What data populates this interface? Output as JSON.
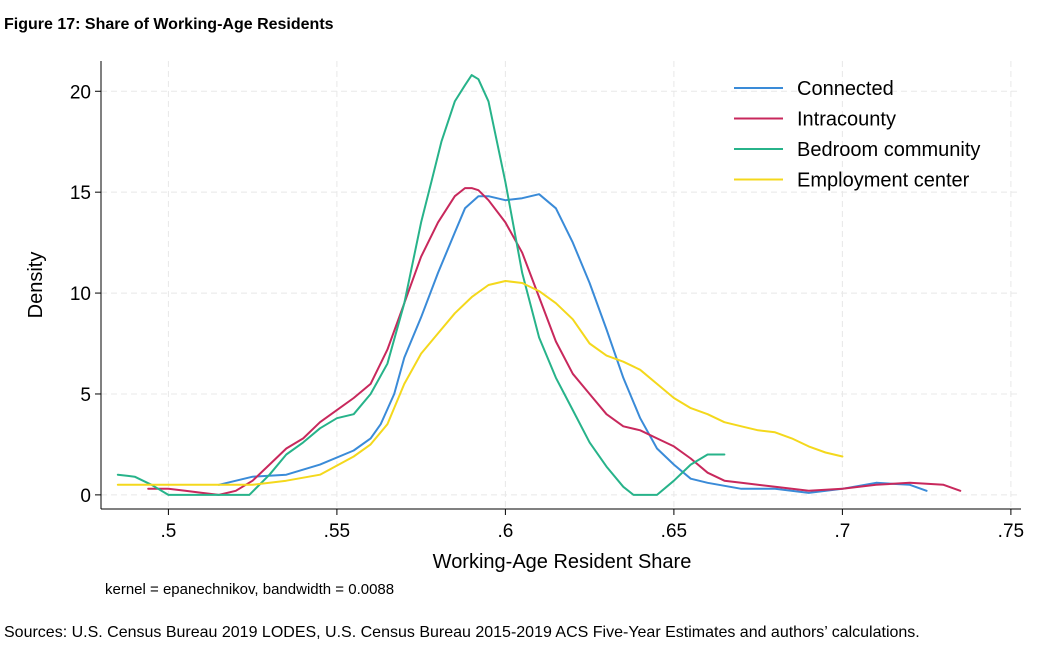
{
  "figure": {
    "title": "Figure 17: Share of Working-Age Residents",
    "sources": "Sources: U.S. Census Bureau 2019 LODES, U.S. Census Bureau 2015-2019 ACS Five-Year Estimates and authors’ calculations."
  },
  "chart_data": {
    "type": "line",
    "title": "Figure 17: Share of Working-Age Residents",
    "xlabel": "Working-Age Resident Share",
    "ylabel": "Density",
    "note": "kernel = epanechnikov, bandwidth = 0.0088",
    "xlim": [
      0.48,
      0.753
    ],
    "ylim": [
      -0.7,
      21.5
    ],
    "xticks": [
      0.5,
      0.55,
      0.6,
      0.65,
      0.7,
      0.75
    ],
    "xtick_labels": [
      ".5",
      ".55",
      ".6",
      ".65",
      ".7",
      ".75"
    ],
    "yticks": [
      0,
      5,
      10,
      15,
      20
    ],
    "ytick_labels": [
      "0",
      "5",
      "10",
      "15",
      "20"
    ],
    "grid": true,
    "legend_position": "top-right",
    "series": [
      {
        "name": "Connected",
        "color": "#3a8bd8",
        "x": [
          0.515,
          0.525,
          0.535,
          0.545,
          0.555,
          0.56,
          0.563,
          0.567,
          0.57,
          0.575,
          0.58,
          0.585,
          0.588,
          0.592,
          0.595,
          0.6,
          0.605,
          0.61,
          0.615,
          0.62,
          0.625,
          0.63,
          0.635,
          0.64,
          0.645,
          0.65,
          0.655,
          0.66,
          0.67,
          0.68,
          0.69,
          0.7,
          0.71,
          0.72,
          0.725
        ],
        "values": [
          0.5,
          0.9,
          1.0,
          1.5,
          2.2,
          2.8,
          3.5,
          5.0,
          6.8,
          8.8,
          11.0,
          13.0,
          14.2,
          14.8,
          14.8,
          14.6,
          14.7,
          14.9,
          14.2,
          12.5,
          10.5,
          8.2,
          5.8,
          3.8,
          2.3,
          1.5,
          0.8,
          0.6,
          0.3,
          0.3,
          0.1,
          0.3,
          0.6,
          0.5,
          0.2
        ]
      },
      {
        "name": "Intracounty",
        "color": "#c8285c",
        "x": [
          0.494,
          0.5,
          0.505,
          0.51,
          0.515,
          0.52,
          0.525,
          0.53,
          0.535,
          0.54,
          0.545,
          0.55,
          0.555,
          0.56,
          0.565,
          0.57,
          0.575,
          0.58,
          0.585,
          0.588,
          0.59,
          0.592,
          0.595,
          0.6,
          0.605,
          0.61,
          0.615,
          0.62,
          0.625,
          0.63,
          0.635,
          0.64,
          0.645,
          0.65,
          0.655,
          0.66,
          0.665,
          0.67,
          0.68,
          0.69,
          0.7,
          0.71,
          0.72,
          0.73,
          0.735
        ],
        "values": [
          0.3,
          0.3,
          0.2,
          0.1,
          0.0,
          0.2,
          0.7,
          1.5,
          2.3,
          2.8,
          3.6,
          4.2,
          4.8,
          5.5,
          7.2,
          9.5,
          11.8,
          13.5,
          14.8,
          15.2,
          15.2,
          15.1,
          14.6,
          13.5,
          12.0,
          9.8,
          7.6,
          6.0,
          5.0,
          4.0,
          3.4,
          3.2,
          2.8,
          2.4,
          1.8,
          1.1,
          0.7,
          0.6,
          0.4,
          0.2,
          0.3,
          0.5,
          0.6,
          0.5,
          0.2
        ]
      },
      {
        "name": "Bedroom community",
        "color": "#27b38a",
        "x": [
          0.485,
          0.49,
          0.495,
          0.5,
          0.505,
          0.51,
          0.515,
          0.52,
          0.524,
          0.53,
          0.535,
          0.54,
          0.545,
          0.55,
          0.555,
          0.56,
          0.565,
          0.57,
          0.575,
          0.578,
          0.581,
          0.585,
          0.588,
          0.59,
          0.592,
          0.595,
          0.6,
          0.605,
          0.61,
          0.615,
          0.62,
          0.625,
          0.63,
          0.635,
          0.638,
          0.64,
          0.645,
          0.65,
          0.655,
          0.66,
          0.665
        ],
        "values": [
          1.0,
          0.9,
          0.5,
          0.0,
          0.0,
          0.0,
          0.0,
          0.0,
          0.0,
          1.0,
          2.0,
          2.6,
          3.3,
          3.8,
          4.0,
          5.0,
          6.5,
          9.5,
          13.5,
          15.5,
          17.5,
          19.5,
          20.3,
          20.8,
          20.6,
          19.5,
          15.5,
          11.0,
          7.8,
          5.8,
          4.2,
          2.6,
          1.4,
          0.4,
          0.0,
          0.0,
          0.0,
          0.7,
          1.5,
          2.0,
          2.0
        ]
      },
      {
        "name": "Employment center",
        "color": "#f4d81c",
        "x": [
          0.485,
          0.495,
          0.505,
          0.515,
          0.525,
          0.535,
          0.545,
          0.555,
          0.56,
          0.565,
          0.57,
          0.575,
          0.58,
          0.585,
          0.59,
          0.595,
          0.6,
          0.605,
          0.61,
          0.615,
          0.62,
          0.625,
          0.63,
          0.635,
          0.64,
          0.645,
          0.65,
          0.655,
          0.66,
          0.665,
          0.67,
          0.675,
          0.68,
          0.685,
          0.69,
          0.695,
          0.7
        ],
        "values": [
          0.5,
          0.5,
          0.5,
          0.5,
          0.5,
          0.7,
          1.0,
          1.9,
          2.5,
          3.5,
          5.5,
          7.0,
          8.0,
          9.0,
          9.8,
          10.4,
          10.6,
          10.5,
          10.1,
          9.5,
          8.7,
          7.5,
          6.9,
          6.6,
          6.2,
          5.5,
          4.8,
          4.3,
          4.0,
          3.6,
          3.4,
          3.2,
          3.1,
          2.8,
          2.4,
          2.1,
          1.9
        ]
      }
    ]
  }
}
